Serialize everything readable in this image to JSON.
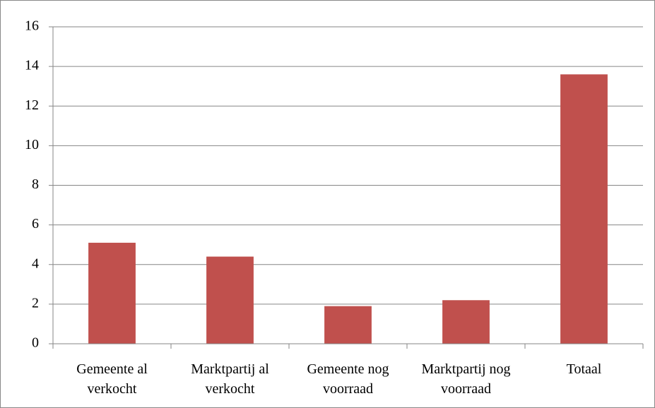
{
  "chart_data": {
    "type": "bar",
    "categories": [
      "Gemeente al verkocht",
      "Marktpartij al verkocht",
      "Gemeente nog voorraad",
      "Marktpartij nog voorraad",
      "Totaal"
    ],
    "values": [
      5.1,
      4.4,
      1.9,
      2.2,
      13.6
    ],
    "color": "#c0504d",
    "ylim": [
      0,
      16
    ],
    "yticks": [
      0,
      2,
      4,
      6,
      8,
      10,
      12,
      14,
      16
    ],
    "grid": true
  }
}
